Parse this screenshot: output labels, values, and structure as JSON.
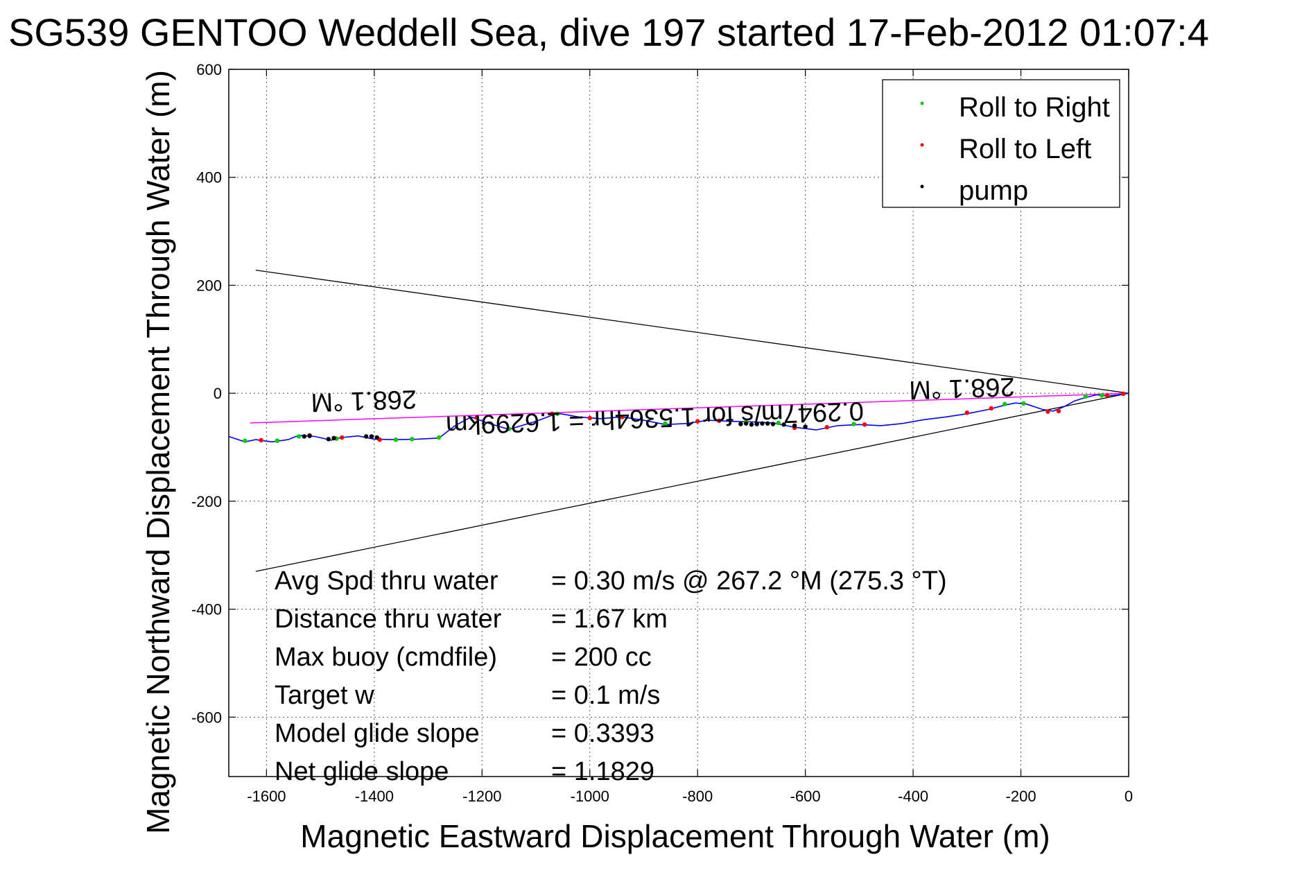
{
  "chart_data": {
    "type": "line",
    "title": "SG539 GENTOO Weddell Sea, dive 197 started 17-Feb-2012 01:07:4",
    "xlabel": "Magnetic Eastward Displacement Through Water (m)",
    "ylabel": "Magnetic Northward Displacement Through Water (m)",
    "xlim": [
      -1670,
      0
    ],
    "ylim": [
      -710,
      600
    ],
    "xticks": [
      -1600,
      -1400,
      -1200,
      -1000,
      -800,
      -600,
      -400,
      -200,
      0
    ],
    "yticks": [
      600,
      400,
      200,
      0,
      -200,
      -400,
      -600
    ],
    "grid": true,
    "legend_position": "top-right",
    "legend": [
      {
        "label": "Roll to Right",
        "color": "#00cc00"
      },
      {
        "label": "Roll to Left",
        "color": "#ff0000"
      },
      {
        "label": "pump",
        "color": "#000000"
      }
    ],
    "track": {
      "name": "track",
      "color": "#0000ff",
      "x": [
        0,
        -20,
        -40,
        -60,
        -80,
        -100,
        -120,
        -140,
        -160,
        -190,
        -210,
        -230,
        -260,
        -300,
        -340,
        -380,
        -420,
        -460,
        -500,
        -540,
        -580,
        -620,
        -660,
        -700,
        -740,
        -780,
        -820,
        -860,
        -900,
        -940,
        -980,
        -1020,
        -1060,
        -1100,
        -1150,
        -1190,
        -1220,
        -1250,
        -1280,
        -1320,
        -1360,
        -1400,
        -1430,
        -1460,
        -1480,
        -1510,
        -1540,
        -1560,
        -1590,
        -1620,
        -1640,
        -1670
      ],
      "y": [
        0,
        -3,
        -5,
        -3,
        -8,
        -14,
        -25,
        -33,
        -30,
        -20,
        -18,
        -22,
        -30,
        -38,
        -44,
        -49,
        -56,
        -60,
        -58,
        -60,
        -68,
        -63,
        -55,
        -53,
        -52,
        -50,
        -56,
        -58,
        -50,
        -44,
        -47,
        -44,
        -37,
        -52,
        -67,
        -55,
        -44,
        -60,
        -83,
        -85,
        -86,
        -85,
        -79,
        -82,
        -87,
        -80,
        -78,
        -86,
        -90,
        -86,
        -90,
        -80
      ]
    },
    "roll_right_points": {
      "x": [
        -50,
        -80,
        -195,
        -230,
        -510,
        -650,
        -710,
        -860,
        -1060,
        -1150,
        -1280,
        -1330,
        -1360,
        -1470,
        -1540,
        -1580,
        -1640
      ],
      "y": [
        -4,
        -6,
        -19,
        -20,
        -57,
        -55,
        -53,
        -56,
        -38,
        -66,
        -82,
        -85,
        -86,
        -84,
        -80,
        -88,
        -88
      ]
    },
    "roll_left_points": {
      "x": [
        -10,
        -40,
        -130,
        -150,
        -255,
        -300,
        -490,
        -560,
        -620,
        -760,
        -800,
        -940,
        -1000,
        -1070,
        -1210,
        -1390,
        -1460,
        -1520,
        -1610
      ],
      "y": [
        -1,
        -4,
        -33,
        -34,
        -28,
        -36,
        -58,
        -63,
        -64,
        -51,
        -52,
        -44,
        -46,
        -38,
        -45,
        -86,
        -82,
        -78,
        -87
      ]
    },
    "pump_points": {
      "x": [
        -600,
        -620,
        -640,
        -660,
        -670,
        -680,
        -690,
        -700,
        -710,
        -720,
        -1395,
        -1405,
        -1415,
        -1475,
        -1485,
        -1520,
        -1530
      ],
      "y": [
        -62,
        -60,
        -58,
        -57,
        -56,
        -56,
        -57,
        -58,
        -56,
        -57,
        -82,
        -80,
        -80,
        -83,
        -85,
        -79,
        -80
      ]
    },
    "heading_line": {
      "color": "#ff00ff",
      "x": [
        0,
        -1630
      ],
      "y": [
        0,
        -55
      ]
    },
    "cone_lines": [
      {
        "color": "#000000",
        "x": [
          0,
          -1620
        ],
        "y": [
          0,
          228
        ]
      },
      {
        "color": "#000000",
        "x": [
          0,
          -1620
        ],
        "y": [
          0,
          -330
        ]
      }
    ],
    "heading_labels": [
      {
        "text": "268.1 °M",
        "x": -1420,
        "y": 2
      },
      {
        "text": "268.1 °M",
        "x": -310,
        "y": 25
      }
    ],
    "rotated_track_label": "0.2947m/s for 1.5364hr = 1.6299km",
    "annotation_table": [
      {
        "label": "Avg Spd thru water",
        "value": "=  0.30 m/s @ 267.2 °M (275.3 °T)"
      },
      {
        "label": "Distance thru water",
        "value": "=  1.67 km"
      },
      {
        "label": "Max buoy (cmdfile)",
        "value": "= 200 cc"
      },
      {
        "label": "Target w",
        "value": "= 0.1 m/s"
      },
      {
        "label": "Model glide slope",
        "value": "= 0.3393"
      },
      {
        "label": "Net glide slope",
        "value": "= 1.1829"
      }
    ]
  }
}
